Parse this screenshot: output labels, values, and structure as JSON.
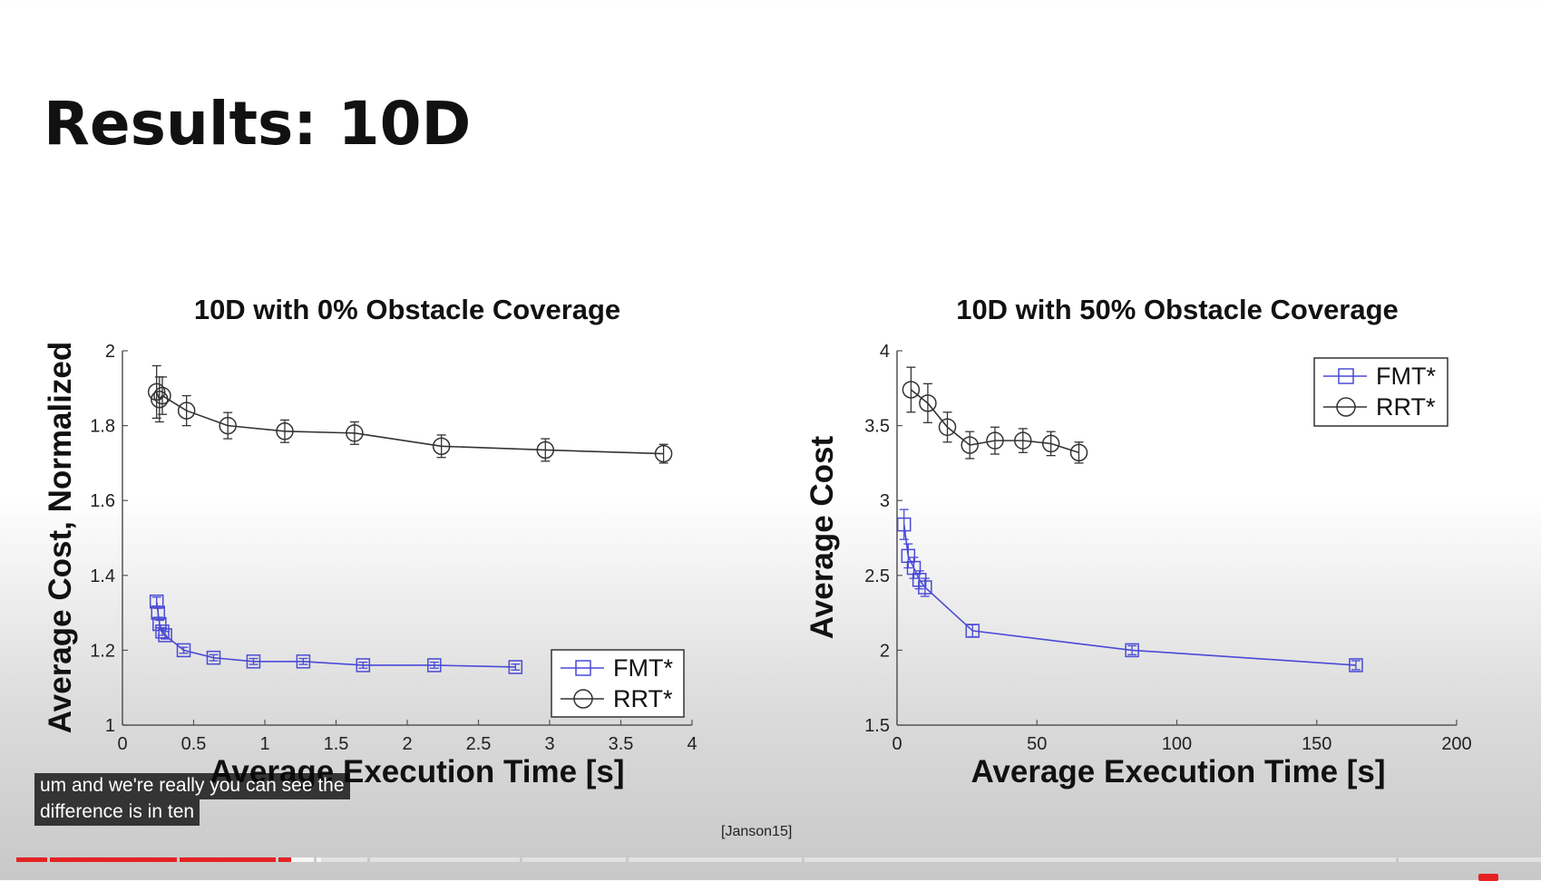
{
  "slide": {
    "title": "Results: 10D",
    "citation": "[Janson15]"
  },
  "chart_data": [
    {
      "type": "line",
      "title": "10D with 0% Obstacle Coverage",
      "xlabel": "Average Execution Time [s]",
      "ylabel": "Average Cost, Normalized",
      "xlim": [
        0,
        4
      ],
      "ylim": [
        1,
        2
      ],
      "xticks": [
        "0",
        "0.5",
        "1",
        "1.5",
        "2",
        "2.5",
        "3",
        "3.5",
        "4"
      ],
      "yticks": [
        "1",
        "1.2",
        "1.4",
        "1.6",
        "1.8",
        "2"
      ],
      "legend_position": "bottom-right",
      "grid": false,
      "series": [
        {
          "name": "FMT*",
          "color": "#4a4ad6",
          "marker": "square",
          "x": [
            0.24,
            0.25,
            0.26,
            0.28,
            0.3,
            0.43,
            0.64,
            0.92,
            1.27,
            1.69,
            2.19,
            2.76
          ],
          "y": [
            1.33,
            1.3,
            1.27,
            1.25,
            1.24,
            1.2,
            1.18,
            1.17,
            1.17,
            1.16,
            1.16,
            1.155
          ],
          "err": [
            0.012,
            0.012,
            0.01,
            0.01,
            0.01,
            0.008,
            0.008,
            0.008,
            0.008,
            0.008,
            0.008,
            0.008
          ]
        },
        {
          "name": "RRT*",
          "color": "#333333",
          "marker": "circle",
          "x": [
            0.24,
            0.26,
            0.28,
            0.45,
            0.74,
            1.14,
            1.63,
            2.24,
            2.97,
            3.8
          ],
          "y": [
            1.89,
            1.87,
            1.88,
            1.84,
            1.8,
            1.785,
            1.78,
            1.745,
            1.735,
            1.725
          ],
          "err": [
            0.07,
            0.06,
            0.05,
            0.04,
            0.035,
            0.03,
            0.03,
            0.03,
            0.03,
            0.025
          ]
        }
      ]
    },
    {
      "type": "line",
      "title": "10D with 50% Obstacle Coverage",
      "xlabel": "Average Execution Time [s]",
      "ylabel": "Average Cost",
      "xlim": [
        0,
        200
      ],
      "ylim": [
        1.5,
        4
      ],
      "xticks": [
        "0",
        "50",
        "100",
        "150",
        "200"
      ],
      "yticks": [
        "1.5",
        "2",
        "2.5",
        "3",
        "3.5",
        "4"
      ],
      "legend_position": "top-right",
      "grid": false,
      "series": [
        {
          "name": "FMT*",
          "color": "#4a4ad6",
          "marker": "square",
          "x": [
            2.5,
            4,
            6,
            8,
            10,
            27,
            84,
            164
          ],
          "y": [
            2.84,
            2.63,
            2.55,
            2.47,
            2.42,
            2.13,
            2.0,
            1.9
          ],
          "err": [
            0.1,
            0.08,
            0.07,
            0.06,
            0.06,
            0.04,
            0.03,
            0.03
          ]
        },
        {
          "name": "RRT*",
          "color": "#333333",
          "marker": "circle",
          "x": [
            5,
            11,
            18,
            26,
            35,
            45,
            55,
            65
          ],
          "y": [
            3.74,
            3.65,
            3.49,
            3.37,
            3.4,
            3.4,
            3.38,
            3.32
          ],
          "err": [
            0.15,
            0.13,
            0.1,
            0.09,
            0.09,
            0.08,
            0.08,
            0.07
          ]
        }
      ]
    }
  ],
  "captions": {
    "line1": "um and we're really you can see the",
    "line2": "difference is in ten"
  },
  "player": {
    "progress": 0.18,
    "buffered": 0.2,
    "accent": "#e52222"
  }
}
